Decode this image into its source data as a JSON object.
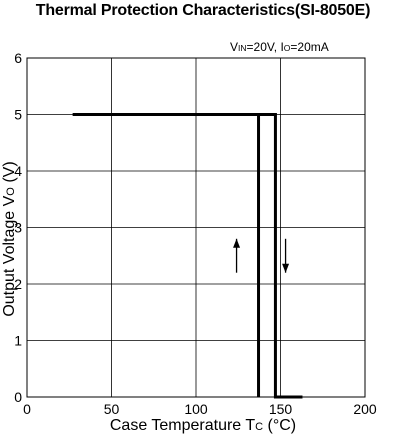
{
  "chart_data": {
    "type": "line",
    "title": "Thermal Protection Characteristics(SI-8050E)",
    "conditions": {
      "vin_main": "V",
      "vin_sub": "IN",
      "vin_val": "=20V, ",
      "io_main": "I",
      "io_sub": "O",
      "io_val": "=20mA"
    },
    "xlabel": {
      "main": "Case Temperature T",
      "sub": "C",
      "unit": " (°C)"
    },
    "ylabel": {
      "main": "Output Voltage V",
      "sub": "O",
      "unit": " (V)"
    },
    "xlim": [
      0,
      200
    ],
    "ylim": [
      0,
      6
    ],
    "xticks": [
      0,
      50,
      100,
      150,
      200
    ],
    "yticks": [
      0,
      1,
      2,
      3,
      4,
      5,
      6
    ],
    "grid": true,
    "series": [
      {
        "x": [
          27,
          137,
          137
        ],
        "y": [
          5,
          5,
          0
        ]
      },
      {
        "x": [
          137,
          147,
          147,
          163
        ],
        "y": [
          5,
          5,
          0,
          0
        ]
      }
    ],
    "arrows": [
      {
        "x": 124,
        "y_from": 2.2,
        "y_to": 2.8,
        "direction": "up"
      },
      {
        "x": 153,
        "y_from": 2.8,
        "y_to": 2.2,
        "direction": "down"
      }
    ],
    "line_color": "#000000"
  }
}
